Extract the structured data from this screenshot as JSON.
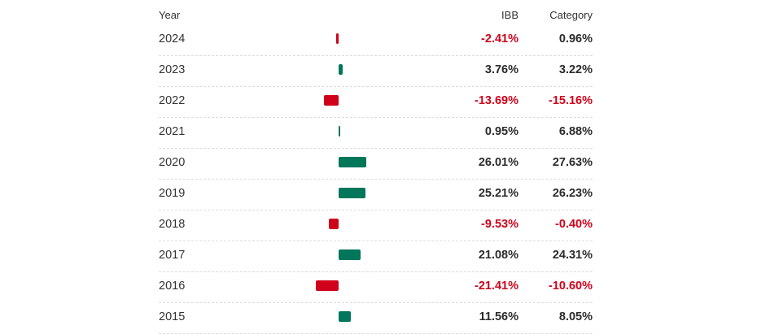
{
  "header": {
    "year": "Year",
    "ibb": "IBB",
    "category": "Category"
  },
  "colors": {
    "positive": "#00765a",
    "negative": "#d0021b"
  },
  "rows": [
    {
      "year": "2024",
      "ibb": "-2.41%",
      "category": "0.96%",
      "ibb_value": -2.41,
      "category_value": 0.96
    },
    {
      "year": "2023",
      "ibb": "3.76%",
      "category": "3.22%",
      "ibb_value": 3.76,
      "category_value": 3.22
    },
    {
      "year": "2022",
      "ibb": "-13.69%",
      "category": "-15.16%",
      "ibb_value": -13.69,
      "category_value": -15.16
    },
    {
      "year": "2021",
      "ibb": "0.95%",
      "category": "6.88%",
      "ibb_value": 0.95,
      "category_value": 6.88
    },
    {
      "year": "2020",
      "ibb": "26.01%",
      "category": "27.63%",
      "ibb_value": 26.01,
      "category_value": 27.63
    },
    {
      "year": "2019",
      "ibb": "25.21%",
      "category": "26.23%",
      "ibb_value": 25.21,
      "category_value": 26.23
    },
    {
      "year": "2018",
      "ibb": "-9.53%",
      "category": "-0.40%",
      "ibb_value": -9.53,
      "category_value": -0.4
    },
    {
      "year": "2017",
      "ibb": "21.08%",
      "category": "24.31%",
      "ibb_value": 21.08,
      "category_value": 24.31
    },
    {
      "year": "2016",
      "ibb": "-21.41%",
      "category": "-10.60%",
      "ibb_value": -21.41,
      "category_value": -10.6
    },
    {
      "year": "2015",
      "ibb": "11.56%",
      "category": "8.05%",
      "ibb_value": 11.56,
      "category_value": 8.05
    }
  ]
}
